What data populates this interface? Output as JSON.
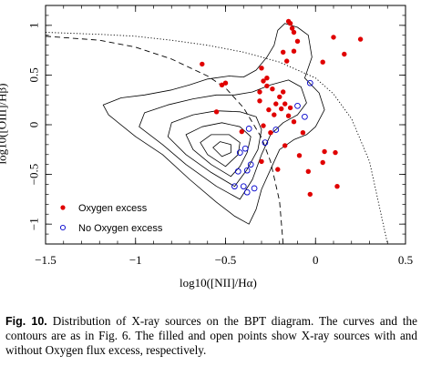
{
  "caption": {
    "label": "Fig. 10.",
    "text": "Distribution of X-ray sources on the BPT diagram. The curves and the contours are as in Fig. 6. The filled and open points show X-ray sources with and without Oxygen flux excess, respectively."
  },
  "chart_data": {
    "type": "scatter",
    "xlabel": "log10([NII]/Hα)",
    "ylabel": "log10([OIII]/Hβ)",
    "xlim": [
      -1.5,
      0.5
    ],
    "ylim": [
      -1.2,
      1.2
    ],
    "x_ticks": [
      "−1.5",
      "−1",
      "−0.5",
      "0",
      "0.5"
    ],
    "y_ticks": [
      "−1",
      "−0.5",
      "0",
      "0.5",
      "1"
    ],
    "legend_position": "bottom-left",
    "grid": false,
    "series": [
      {
        "name": "Oxygen excess",
        "marker": "filled-circle",
        "color": "#e00000",
        "points": [
          [
            -0.15,
            1.04
          ],
          [
            -0.14,
            1.02
          ],
          [
            -0.13,
            0.97
          ],
          [
            -0.12,
            0.93
          ],
          [
            -0.1,
            0.84
          ],
          [
            -0.12,
            0.74
          ],
          [
            -0.18,
            0.73
          ],
          [
            -0.16,
            0.64
          ],
          [
            0.1,
            0.88
          ],
          [
            0.16,
            0.71
          ],
          [
            0.25,
            0.86
          ],
          [
            0.04,
            0.63
          ],
          [
            -0.63,
            0.61
          ],
          [
            -0.3,
            0.57
          ],
          [
            -0.27,
            0.47
          ],
          [
            -0.29,
            0.44
          ],
          [
            -0.5,
            0.42
          ],
          [
            -0.52,
            0.4
          ],
          [
            -0.27,
            0.39
          ],
          [
            -0.24,
            0.36
          ],
          [
            -0.31,
            0.33
          ],
          [
            -0.18,
            0.33
          ],
          [
            -0.2,
            0.28
          ],
          [
            -0.31,
            0.24
          ],
          [
            -0.22,
            0.21
          ],
          [
            -0.17,
            0.21
          ],
          [
            -0.19,
            0.16
          ],
          [
            -0.14,
            0.17
          ],
          [
            -0.26,
            0.15
          ],
          [
            -0.23,
            0.1
          ],
          [
            -0.15,
            0.09
          ],
          [
            -0.12,
            0.03
          ],
          [
            -0.29,
            -0.01
          ],
          [
            -0.55,
            0.13
          ],
          [
            -0.41,
            -0.07
          ],
          [
            -0.25,
            -0.08
          ],
          [
            -0.17,
            -0.21
          ],
          [
            -0.07,
            -0.08
          ],
          [
            0.05,
            -0.27
          ],
          [
            0.11,
            -0.28
          ],
          [
            0.04,
            -0.38
          ],
          [
            -0.09,
            -0.31
          ],
          [
            -0.3,
            -0.37
          ],
          [
            -0.21,
            -0.45
          ],
          [
            -0.04,
            -0.47
          ],
          [
            -0.03,
            -0.7
          ],
          [
            0.12,
            -0.62
          ]
        ]
      },
      {
        "name": "No Oxygen excess",
        "marker": "open-circle",
        "color": "#0000cc",
        "points": [
          [
            -0.03,
            0.42
          ],
          [
            -0.1,
            0.19
          ],
          [
            -0.06,
            0.08
          ],
          [
            -0.22,
            -0.05
          ],
          [
            -0.37,
            -0.04
          ],
          [
            -0.28,
            -0.18
          ],
          [
            -0.39,
            -0.24
          ],
          [
            -0.42,
            -0.28
          ],
          [
            -0.36,
            -0.4
          ],
          [
            -0.38,
            -0.46
          ],
          [
            -0.43,
            -0.47
          ],
          [
            -0.34,
            -0.64
          ],
          [
            -0.4,
            -0.62
          ],
          [
            -0.45,
            -0.62
          ],
          [
            -0.38,
            -0.68
          ]
        ]
      }
    ],
    "curves": [
      {
        "name": "",
        "style": "dashed",
        "points": [
          [
            -1.5,
            0.89
          ],
          [
            -1.2,
            0.85
          ],
          [
            -1.0,
            0.78
          ],
          [
            -0.8,
            0.66
          ],
          [
            -0.6,
            0.49
          ],
          [
            -0.5,
            0.37
          ],
          [
            -0.4,
            0.17
          ],
          [
            -0.3,
            -0.13
          ],
          [
            -0.25,
            -0.37
          ],
          [
            -0.2,
            -0.77
          ],
          [
            -0.18,
            -1.2
          ]
        ]
      },
      {
        "name": "",
        "style": "dotted",
        "points": [
          [
            -1.5,
            0.93
          ],
          [
            -1.2,
            0.91
          ],
          [
            -1.0,
            0.89
          ],
          [
            -0.8,
            0.85
          ],
          [
            -0.6,
            0.8
          ],
          [
            -0.4,
            0.73
          ],
          [
            -0.2,
            0.63
          ],
          [
            0.0,
            0.47
          ],
          [
            0.1,
            0.31
          ],
          [
            0.2,
            0.06
          ],
          [
            0.3,
            -0.37
          ],
          [
            0.4,
            -1.2
          ]
        ]
      }
    ],
    "contours": [
      [
        [
          -0.37,
          -1.0
        ],
        [
          -0.45,
          -0.92
        ],
        [
          -0.55,
          -0.78
        ],
        [
          -0.7,
          -0.55
        ],
        [
          -0.85,
          -0.3
        ],
        [
          -1.0,
          -0.12
        ],
        [
          -1.15,
          0.1
        ],
        [
          -1.18,
          0.2
        ],
        [
          -1.08,
          0.27
        ],
        [
          -0.95,
          0.3
        ],
        [
          -0.8,
          0.35
        ],
        [
          -0.7,
          0.4
        ],
        [
          -0.6,
          0.46
        ],
        [
          -0.48,
          0.49
        ],
        [
          -0.4,
          0.48
        ],
        [
          -0.33,
          0.55
        ],
        [
          -0.27,
          0.68
        ],
        [
          -0.23,
          0.8
        ],
        [
          -0.21,
          0.95
        ],
        [
          -0.17,
          1.02
        ],
        [
          -0.1,
          0.98
        ],
        [
          -0.04,
          0.9
        ],
        [
          -0.02,
          0.68
        ],
        [
          -0.06,
          0.47
        ],
        [
          0.02,
          0.32
        ],
        [
          0.05,
          0.15
        ],
        [
          0.0,
          -0.02
        ],
        [
          -0.05,
          -0.1
        ],
        [
          -0.12,
          -0.15
        ],
        [
          -0.2,
          -0.25
        ],
        [
          -0.25,
          -0.45
        ],
        [
          -0.3,
          -0.65
        ],
        [
          -0.33,
          -0.85
        ],
        [
          -0.37,
          -1.0
        ]
      ],
      [
        [
          -0.42,
          -0.75
        ],
        [
          -0.55,
          -0.62
        ],
        [
          -0.72,
          -0.4
        ],
        [
          -0.85,
          -0.2
        ],
        [
          -0.98,
          -0.02
        ],
        [
          -0.95,
          0.12
        ],
        [
          -0.82,
          0.2
        ],
        [
          -0.68,
          0.26
        ],
        [
          -0.55,
          0.3
        ],
        [
          -0.45,
          0.3
        ],
        [
          -0.35,
          0.33
        ],
        [
          -0.25,
          0.4
        ],
        [
          -0.15,
          0.45
        ],
        [
          -0.08,
          0.38
        ],
        [
          -0.05,
          0.22
        ],
        [
          -0.1,
          0.1
        ],
        [
          -0.18,
          0.02
        ],
        [
          -0.25,
          -0.1
        ],
        [
          -0.3,
          -0.3
        ],
        [
          -0.35,
          -0.55
        ],
        [
          -0.42,
          -0.75
        ]
      ],
      [
        [
          -0.45,
          -0.62
        ],
        [
          -0.58,
          -0.48
        ],
        [
          -0.72,
          -0.3
        ],
        [
          -0.82,
          -0.12
        ],
        [
          -0.8,
          0.02
        ],
        [
          -0.68,
          0.1
        ],
        [
          -0.55,
          0.14
        ],
        [
          -0.42,
          0.13
        ],
        [
          -0.33,
          0.08
        ],
        [
          -0.3,
          -0.05
        ],
        [
          -0.32,
          -0.25
        ],
        [
          -0.38,
          -0.45
        ],
        [
          -0.45,
          -0.62
        ]
      ],
      [
        [
          -0.47,
          -0.52
        ],
        [
          -0.58,
          -0.4
        ],
        [
          -0.68,
          -0.25
        ],
        [
          -0.72,
          -0.1
        ],
        [
          -0.63,
          -0.02
        ],
        [
          -0.52,
          0.02
        ],
        [
          -0.42,
          -0.02
        ],
        [
          -0.36,
          -0.12
        ],
        [
          -0.38,
          -0.28
        ],
        [
          -0.42,
          -0.42
        ],
        [
          -0.47,
          -0.52
        ]
      ],
      [
        [
          -0.5,
          -0.42
        ],
        [
          -0.6,
          -0.3
        ],
        [
          -0.64,
          -0.18
        ],
        [
          -0.58,
          -0.1
        ],
        [
          -0.48,
          -0.1
        ],
        [
          -0.42,
          -0.18
        ],
        [
          -0.43,
          -0.3
        ],
        [
          -0.5,
          -0.42
        ]
      ],
      [
        [
          -0.52,
          -0.32
        ],
        [
          -0.57,
          -0.23
        ],
        [
          -0.53,
          -0.17
        ],
        [
          -0.47,
          -0.2
        ],
        [
          -0.47,
          -0.28
        ],
        [
          -0.52,
          -0.32
        ]
      ]
    ]
  }
}
